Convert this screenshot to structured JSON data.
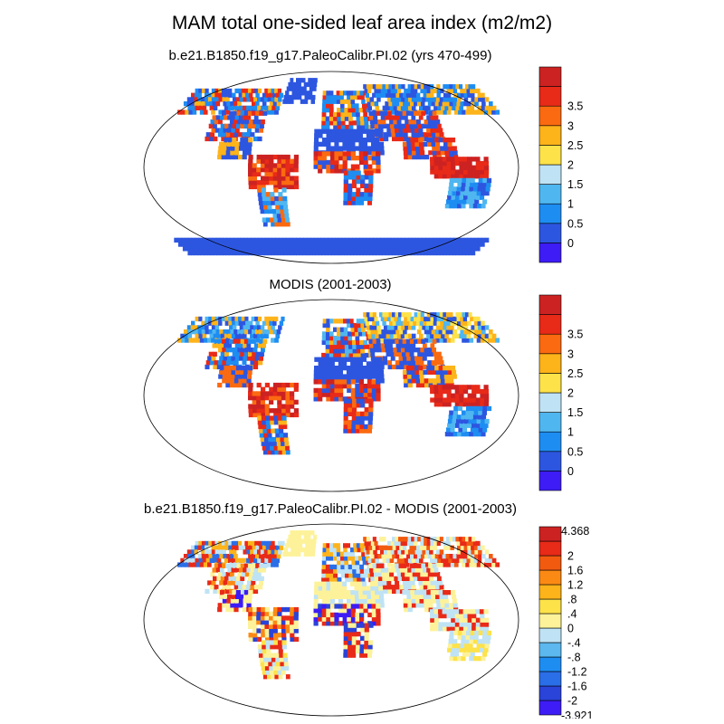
{
  "title": "MAM total one-sided leaf area index (m2/m2)",
  "panels": [
    {
      "id": "model",
      "title": "b.e21.B1850.f19_g17.PaleoCalibr.PI.02 (yrs 470-499)",
      "colorbar": {
        "colors": [
          "#3d1cf5",
          "#2d56e0",
          "#1e8df2",
          "#4fb6f0",
          "#bfe3f5",
          "#fde24a",
          "#fdb31a",
          "#fb6a10",
          "#e82a18",
          "#cc2222"
        ],
        "labels": [
          "0",
          "0.5",
          "1",
          "1.5",
          "2",
          "2.5",
          "3",
          "3.5"
        ],
        "top_label": "",
        "bottom_label": ""
      }
    },
    {
      "id": "obs",
      "title": "MODIS (2001-2003)",
      "colorbar": {
        "colors": [
          "#3d1cf5",
          "#2d56e0",
          "#1e8df2",
          "#4fb6f0",
          "#bfe3f5",
          "#fde24a",
          "#fdb31a",
          "#fb6a10",
          "#e82a18",
          "#cc2222"
        ],
        "labels": [
          "0",
          "0.5",
          "1",
          "1.5",
          "2",
          "2.5",
          "3",
          "3.5"
        ],
        "top_label": "",
        "bottom_label": ""
      }
    },
    {
      "id": "diff",
      "title": "b.e21.B1850.f19_g17.PaleoCalibr.PI.02 - MODIS (2001-2003)",
      "colorbar": {
        "colors": [
          "#3d1cf5",
          "#2a43d8",
          "#2a6ee8",
          "#1e8df2",
          "#5cb8ee",
          "#bfe3f5",
          "#fdf29a",
          "#fde24a",
          "#fdb31a",
          "#fb8a14",
          "#f25a10",
          "#e82a18",
          "#cc2222"
        ],
        "labels": [
          "-2",
          "-1.6",
          "-1.2",
          "-.8",
          "-.4",
          "0",
          ".4",
          ".8",
          "1.2",
          "1.6",
          "2"
        ],
        "top_label": "4.368",
        "bottom_label": "-3.921"
      }
    }
  ]
}
